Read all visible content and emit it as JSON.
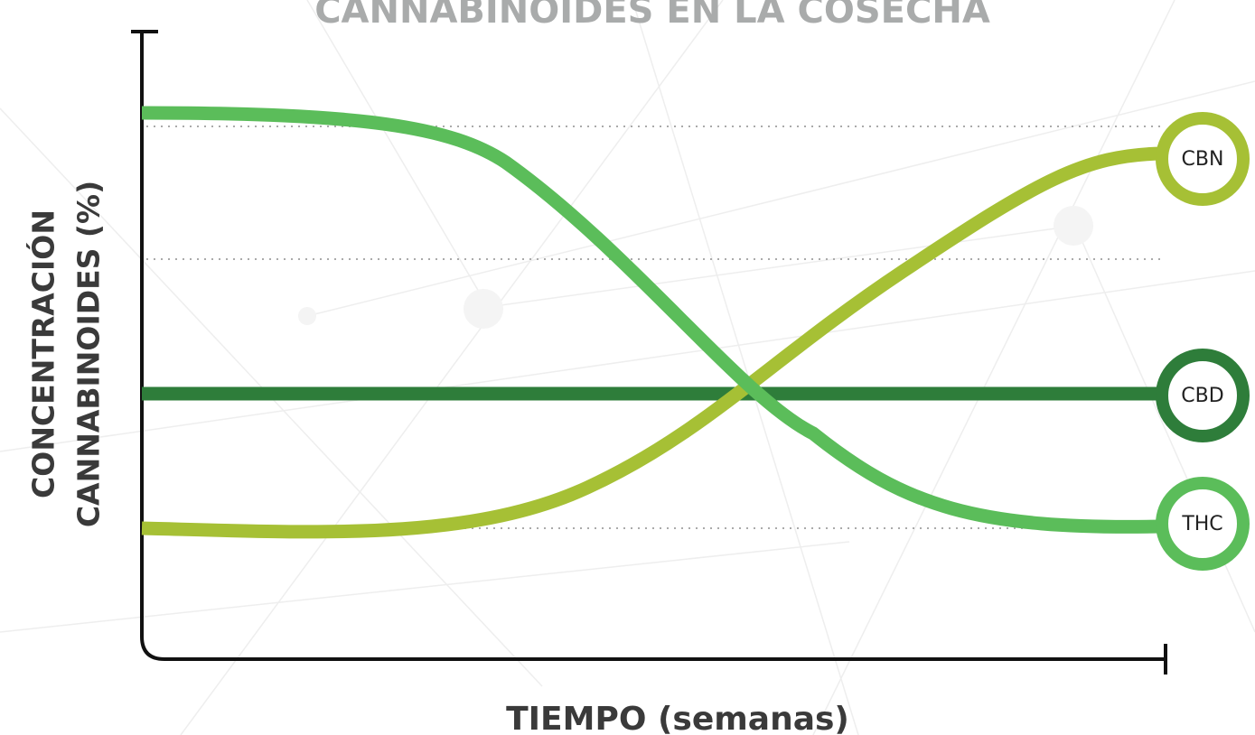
{
  "title": "CANNABINOIDES EN LA COSECHA",
  "y_axis_label": {
    "line1": "CONCENTRACIÓN",
    "line2": "CANNABINOIDES (%)"
  },
  "x_axis_label": "TIEMPO (semanas)",
  "curves": [
    {
      "label": "CBN"
    },
    {
      "label": "CBD"
    },
    {
      "label": "THC"
    }
  ]
}
